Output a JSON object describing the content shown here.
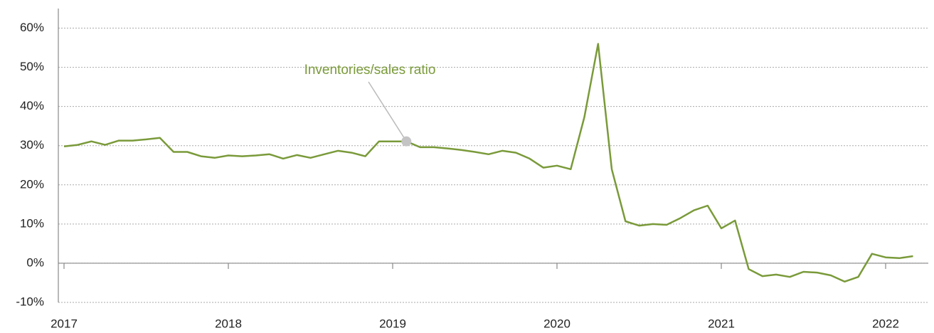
{
  "chart_data": {
    "type": "line",
    "categories": [
      "2017",
      null,
      null,
      null,
      null,
      null,
      null,
      null,
      null,
      null,
      null,
      null,
      "2018",
      null,
      null,
      null,
      null,
      null,
      null,
      null,
      null,
      null,
      null,
      null,
      "2019",
      null,
      null,
      null,
      null,
      null,
      null,
      null,
      null,
      null,
      null,
      null,
      "2020",
      null,
      null,
      null,
      null,
      null,
      null,
      null,
      null,
      null,
      null,
      null,
      "2021",
      null,
      null,
      null,
      null,
      null,
      null,
      null,
      null,
      null,
      null,
      null,
      "2022",
      null,
      null
    ],
    "series": [
      {
        "name": "Inventories/sales ratio",
        "color": "#7a9a3a",
        "values": [
          29.8,
          30.2,
          31.1,
          30.2,
          31.3,
          31.3,
          31.6,
          32.0,
          28.4,
          28.4,
          27.3,
          26.9,
          27.5,
          27.3,
          27.5,
          27.8,
          26.7,
          27.6,
          26.9,
          27.8,
          28.7,
          28.2,
          27.3,
          31.1,
          31.1,
          31.1,
          29.6,
          29.6,
          29.3,
          28.9,
          28.4,
          27.8,
          28.7,
          28.2,
          26.7,
          24.4,
          24.9,
          24.0,
          37.3,
          56.0,
          24.0,
          10.7,
          9.6,
          10.0,
          9.8,
          11.5,
          13.5,
          14.7,
          8.9,
          10.9,
          -1.5,
          -3.3,
          -2.9,
          -3.5,
          -2.2,
          -2.4,
          -3.1,
          -4.7,
          -3.5,
          2.4,
          1.5,
          1.3,
          1.8
        ]
      }
    ],
    "ylim": [
      -10,
      65
    ],
    "yticks": [
      {
        "value": -10,
        "label": "-10%"
      },
      {
        "value": 0,
        "label": "0%"
      },
      {
        "value": 10,
        "label": "10%"
      },
      {
        "value": 20,
        "label": "20%"
      },
      {
        "value": 30,
        "label": "30%"
      },
      {
        "value": 40,
        "label": "40%"
      },
      {
        "value": 50,
        "label": "50%"
      },
      {
        "value": 60,
        "label": "60%"
      }
    ],
    "grid": true
  }
}
